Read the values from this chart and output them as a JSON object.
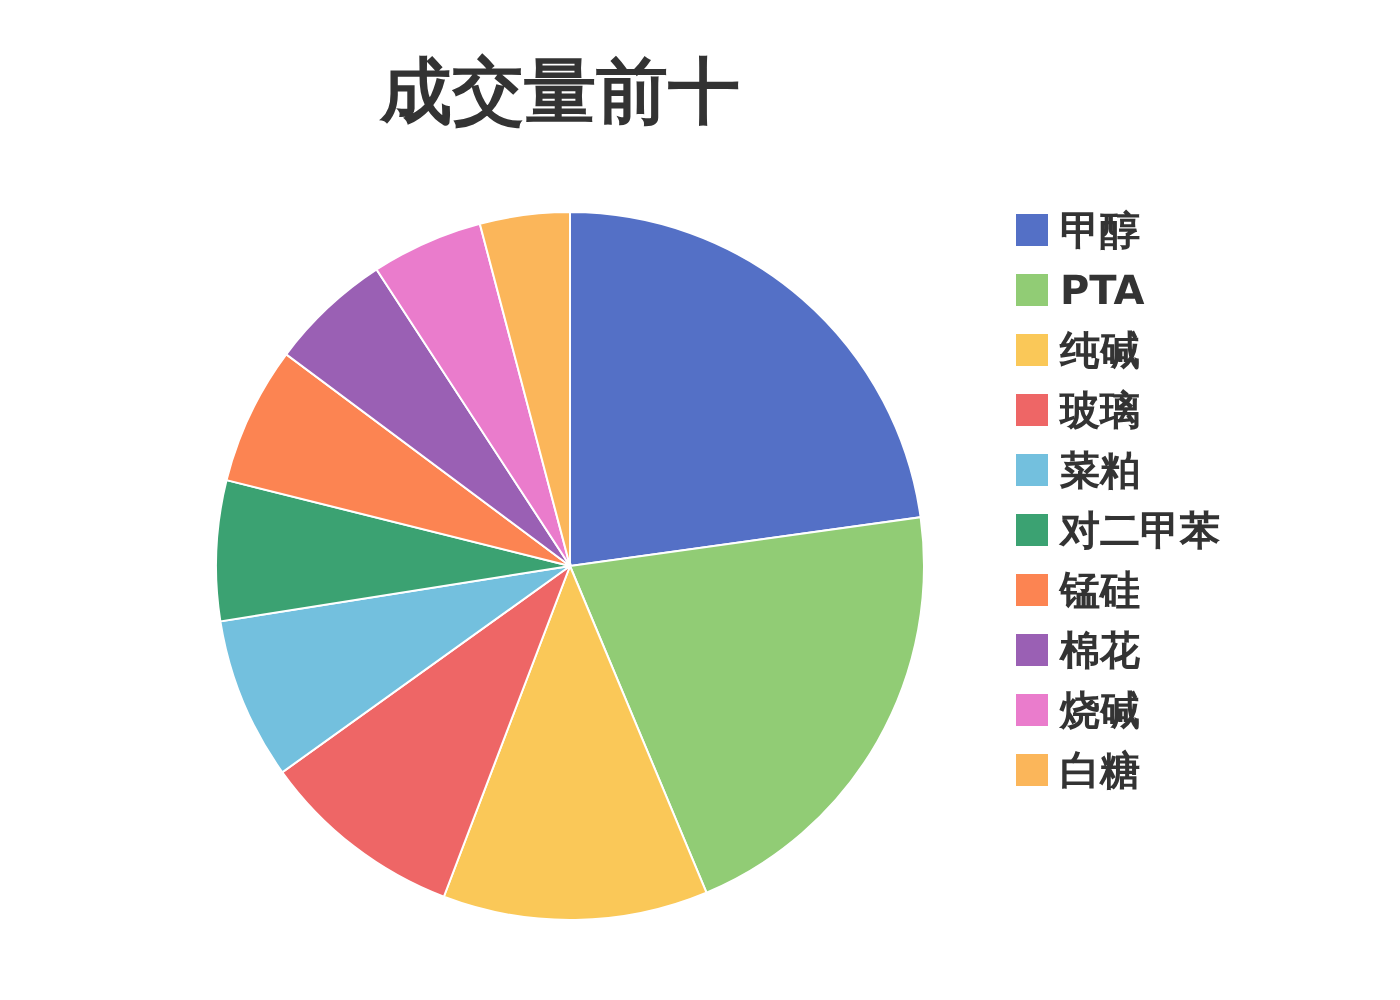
{
  "chart_data": {
    "type": "pie",
    "title": "成交量前十",
    "categories": [
      "甲醇",
      "PTA",
      "纯碱",
      "玻璃",
      "菜粕",
      "对二甲苯",
      "锰硅",
      "棉花",
      "烧碱",
      "白糖"
    ],
    "values": [
      22.8,
      20.9,
      12.1,
      9.3,
      7.4,
      6.4,
      6.3,
      5.6,
      5.1,
      4.1
    ],
    "colors": [
      "#5470c6",
      "#91cc75",
      "#fac858",
      "#ee6666",
      "#73c0de",
      "#3ba272",
      "#fc8452",
      "#9a60b4",
      "#ea7ccc",
      "#fbb65a"
    ],
    "legend": "right"
  }
}
